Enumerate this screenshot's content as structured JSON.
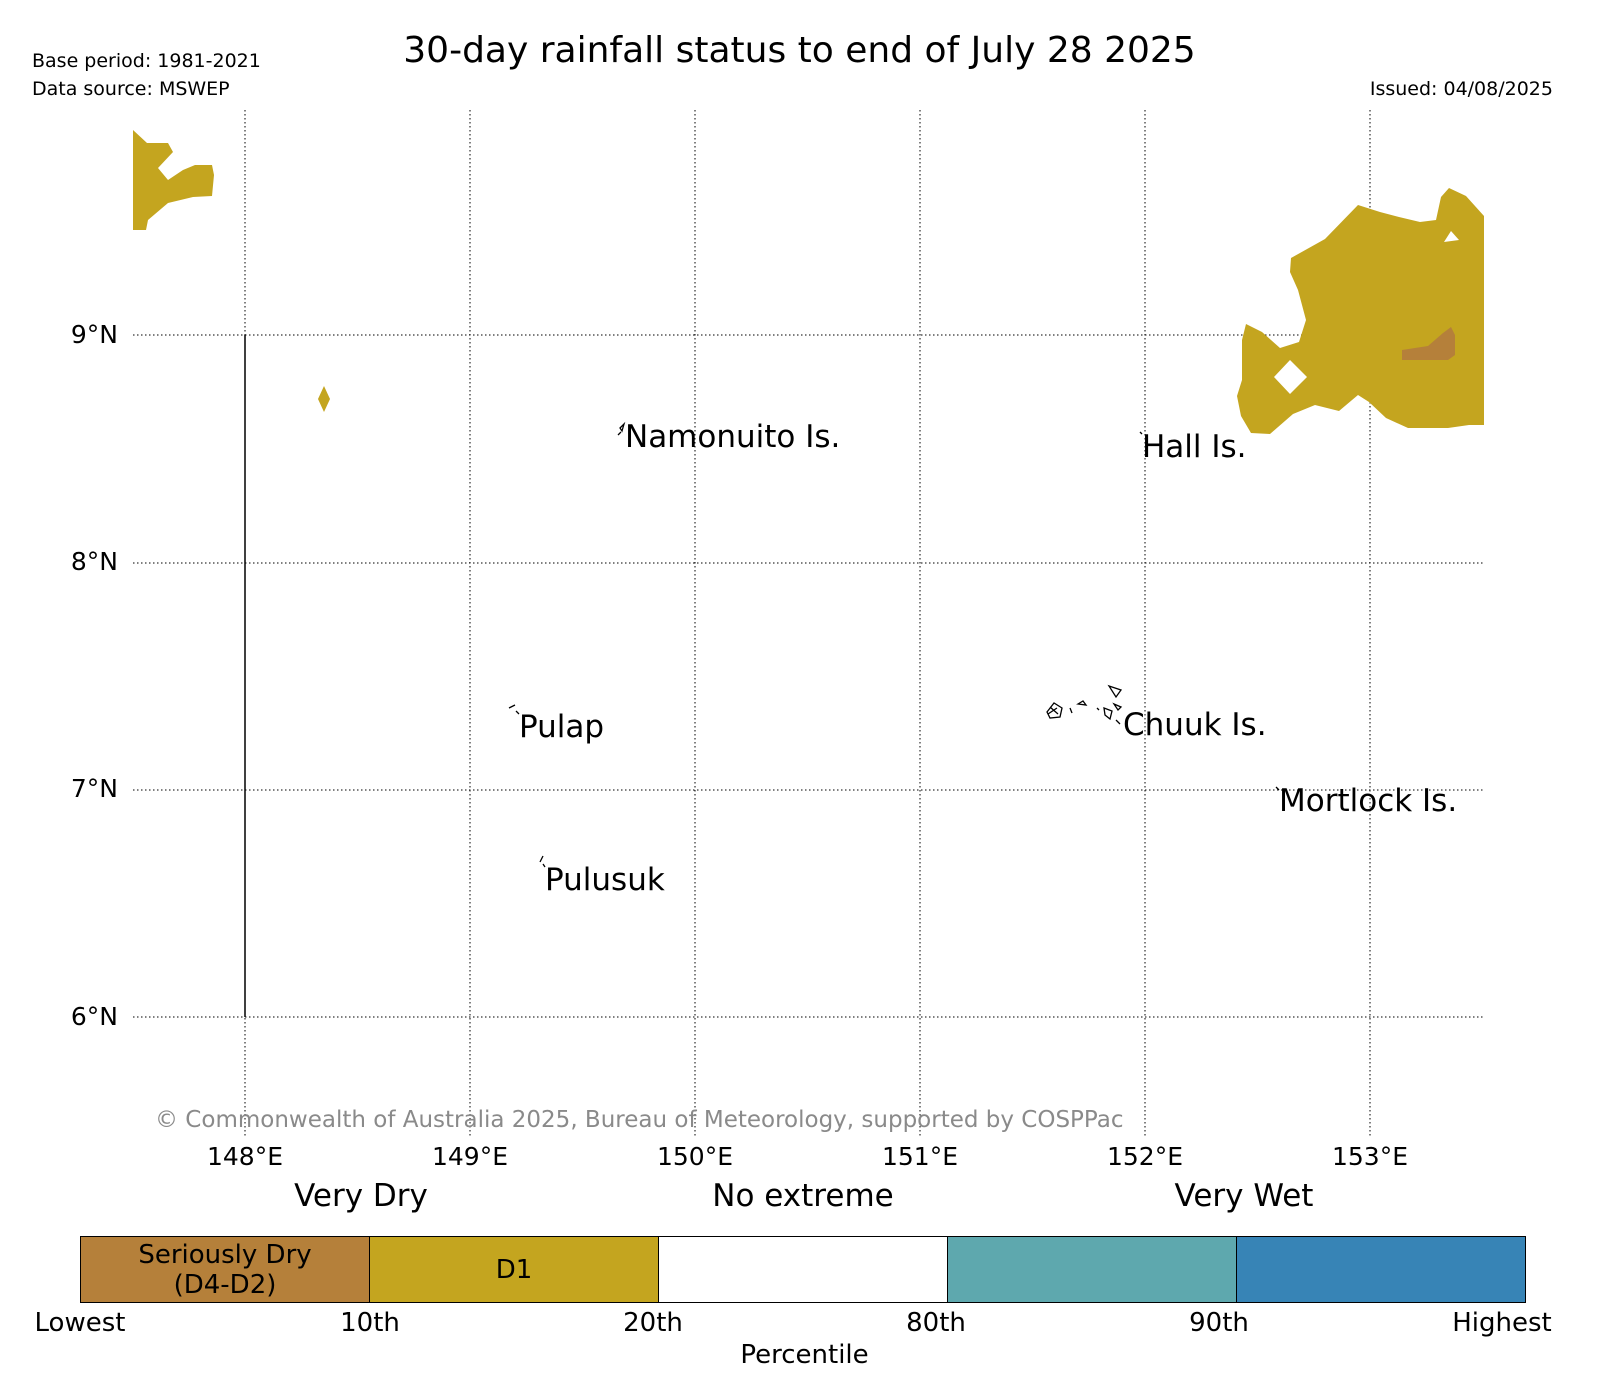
{
  "header": {
    "title": "30-day rainfall status to end of July 28 2025",
    "base_period": "Base period: 1981-2021",
    "data_source": "Data source: MSWEP",
    "issued": "Issued: 04/08/2025"
  },
  "map": {
    "lat_labels": [
      "9°N",
      "8°N",
      "7°N",
      "6°N"
    ],
    "lon_labels": [
      "148°E",
      "149°E",
      "150°E",
      "151°E",
      "152°E",
      "153°E"
    ],
    "places": {
      "namonuito": "Namonuito Is.",
      "hall": "Hall Is.",
      "pulap": "Pulap",
      "chuuk": "Chuuk Is.",
      "mortlock": "Mortlock Is.",
      "pulusuk": "Pulusuk"
    },
    "copyright": "© Commonwealth of Australia 2025, Bureau of Meteorology, supported by COSPPac"
  },
  "legend": {
    "categories": [
      "Very Dry",
      "No extreme",
      "Very Wet"
    ],
    "segments": [
      {
        "label_line1": "Seriously Dry",
        "label_line2": "(D4-D2)",
        "color": "#b5803a"
      },
      {
        "label_line1": "D1",
        "label_line2": "",
        "color": "#c4a51f"
      },
      {
        "label_line1": "",
        "label_line2": "",
        "color": "#ffffff"
      },
      {
        "label_line1": "",
        "label_line2": "",
        "color": "#5ea8ae"
      },
      {
        "label_line1": "",
        "label_line2": "",
        "color": "#3784b6"
      }
    ],
    "ticks": [
      "Lowest",
      "10th",
      "20th",
      "80th",
      "90th",
      "Highest"
    ],
    "xlabel": "Percentile"
  }
}
